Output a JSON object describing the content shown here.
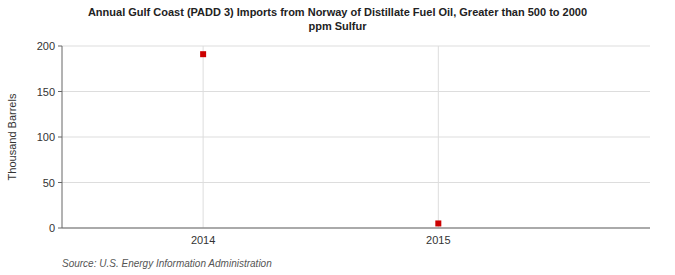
{
  "chart_data": {
    "type": "scatter",
    "title": "Annual Gulf Coast (PADD 3) Imports from Norway of Distillate Fuel Oil, Greater than 500 to 2000\nppm Sulfur",
    "y_label": "Thousand Barrels",
    "source": "Source: U.S. Energy Information Administration",
    "x": [
      2014,
      2015
    ],
    "values": [
      191,
      5
    ],
    "color": "#cc0000",
    "marker": "square",
    "xlim": [
      2013.4,
      2015.9
    ],
    "xticks": [
      2014,
      2015
    ],
    "ylim": [
      0,
      200
    ],
    "yticks": [
      0,
      50,
      100,
      150,
      200
    ],
    "grid": true
  }
}
